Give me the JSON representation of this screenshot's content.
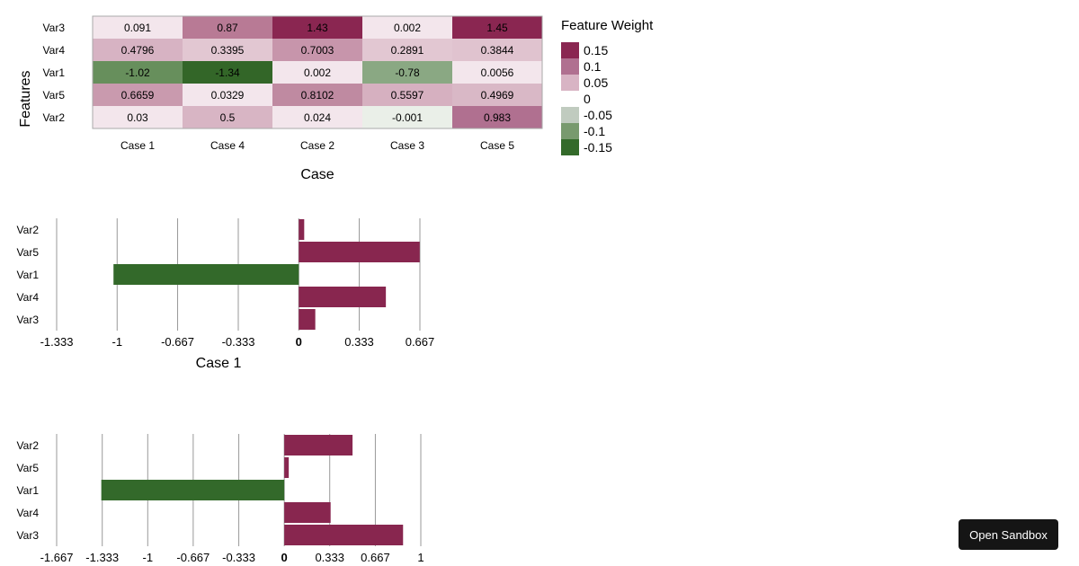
{
  "chart_data": [
    {
      "type": "heatmap",
      "xlabel": "Case",
      "ylabel": "Features",
      "columns": [
        "Case 1",
        "Case 4",
        "Case 2",
        "Case 3",
        "Case 5"
      ],
      "rows": [
        "Var3",
        "Var4",
        "Var1",
        "Var5",
        "Var2"
      ],
      "values": [
        [
          "0.091",
          "0.87",
          "1.43",
          "0.002",
          "1.45"
        ],
        [
          "0.4796",
          "0.3395",
          "0.7003",
          "0.2891",
          "0.3844"
        ],
        [
          "-1.02",
          "-1.34",
          "0.002",
          "-0.78",
          "0.0056"
        ],
        [
          "0.6659",
          "0.0329",
          "0.8102",
          "0.5597",
          "0.4969"
        ],
        [
          "0.03",
          "0.5",
          "0.024",
          "-0.001",
          "0.983"
        ]
      ],
      "cell_colors": [
        [
          "#f3e6ec",
          "#b87a95",
          "#8a2651",
          "#f3e6ec",
          "#8a2651"
        ],
        [
          "#d7b3c3",
          "#e2c7d2",
          "#c795ab",
          "#e2c7d2",
          "#e0c3cf"
        ],
        [
          "#678f5c",
          "#336628",
          "#f3e6ec",
          "#8aa883",
          "#f3e6ec"
        ],
        [
          "#c99aae",
          "#f3e6ec",
          "#bf8aa1",
          "#d6b0c0",
          "#d9b8c6"
        ],
        [
          "#f3e6ec",
          "#d8b5c4",
          "#f3e6ec",
          "#eaefe8",
          "#b07090"
        ]
      ],
      "legend": {
        "title": "Feature Weight",
        "placement": "right",
        "entries": [
          {
            "label": "0.15",
            "color": "#8a2651"
          },
          {
            "label": "0.1",
            "color": "#b07090"
          },
          {
            "label": "0.05",
            "color": "#d8b4c4"
          },
          {
            "label": "0",
            "color": "#ffffff"
          },
          {
            "label": "-0.05",
            "color": "#c0cbbf"
          },
          {
            "label": "-0.1",
            "color": "#789a6e"
          },
          {
            "label": "-0.15",
            "color": "#336a2a"
          }
        ]
      }
    },
    {
      "type": "bar",
      "orientation": "horizontal",
      "xlabel": "Case 1",
      "categories": [
        "Var2",
        "Var5",
        "Var1",
        "Var4",
        "Var3"
      ],
      "values": [
        0.03,
        0.6659,
        -1.02,
        0.4796,
        0.091
      ],
      "xlim": [
        -1.333,
        0.667
      ],
      "ticks": [
        "-1.333",
        "-1",
        "-0.667",
        "-0.333",
        "0",
        "0.333",
        "0.667"
      ],
      "grid": true,
      "positive_color": "#88264f",
      "negative_color": "#33692a"
    },
    {
      "type": "bar",
      "orientation": "horizontal",
      "xlabel": "",
      "categories": [
        "Var2",
        "Var5",
        "Var1",
        "Var4",
        "Var3"
      ],
      "values": [
        0.5,
        0.0329,
        -1.34,
        0.3395,
        0.87
      ],
      "xlim": [
        -1.667,
        1
      ],
      "ticks": [
        "-1.667",
        "-1.333",
        "-1",
        "-0.667",
        "-0.333",
        "0",
        "0.333",
        "0.667",
        "1"
      ],
      "grid": true,
      "positive_color": "#88264f",
      "negative_color": "#33692a"
    }
  ],
  "button": {
    "label": "Open Sandbox"
  }
}
